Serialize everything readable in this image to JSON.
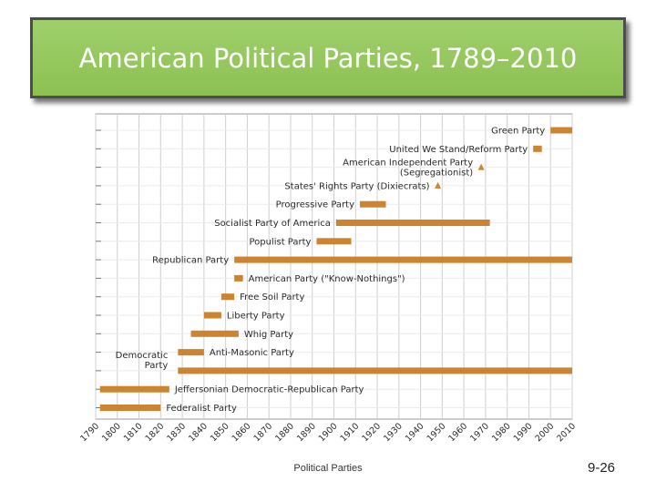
{
  "slide": {
    "title": "American Political Parties, 1789–2010",
    "footer": "Political Parties",
    "page_number": "9-26"
  },
  "colors": {
    "bar": "#cc8431",
    "title_bg": "#8cc152",
    "grid": "#cfcfcf"
  },
  "chart_data": {
    "type": "bar",
    "orientation": "horizontal-timeline",
    "title": "American Political Parties, 1789–2010",
    "xlim": [
      1790,
      2010
    ],
    "x_ticks": [
      1790,
      1800,
      1810,
      1820,
      1830,
      1840,
      1850,
      1860,
      1870,
      1880,
      1890,
      1900,
      1910,
      1920,
      1930,
      1940,
      1950,
      1960,
      1970,
      1980,
      1990,
      2000,
      2010
    ],
    "grid": true,
    "parties": [
      {
        "name": "Green Party",
        "start": 2000,
        "end": 2010,
        "label_side": "left"
      },
      {
        "name": "United We Stand/Reform Party",
        "start": 1992,
        "end": 1996,
        "label_side": "left"
      },
      {
        "name": "American Independent Party\n(Segregationist)",
        "start": 1968,
        "end": 1968,
        "marker": "triangle",
        "label_side": "left"
      },
      {
        "name": "States' Rights Party (Dixiecrats)",
        "start": 1948,
        "end": 1948,
        "marker": "triangle",
        "label_side": "left"
      },
      {
        "name": "Progressive Party",
        "start": 1912,
        "end": 1924,
        "label_side": "left"
      },
      {
        "name": "Socialist Party of America",
        "start": 1901,
        "end": 1972,
        "label_side": "left"
      },
      {
        "name": "Populist Party",
        "start": 1892,
        "end": 1908,
        "label_side": "left"
      },
      {
        "name": "Republican Party",
        "start": 1854,
        "end": 2010,
        "label_side": "left"
      },
      {
        "name": "American Party (\"Know-Nothings\")",
        "start": 1854,
        "end": 1858,
        "label_side": "right"
      },
      {
        "name": "Free Soil Party",
        "start": 1848,
        "end": 1854,
        "label_side": "right"
      },
      {
        "name": "Liberty Party",
        "start": 1840,
        "end": 1848,
        "label_side": "right"
      },
      {
        "name": "Whig Party",
        "start": 1834,
        "end": 1856,
        "label_side": "right"
      },
      {
        "name": "Anti-Masonic Party",
        "start": 1828,
        "end": 1840,
        "label_side": "right"
      },
      {
        "name": "Democratic\nParty",
        "start": 1828,
        "end": 2010,
        "label_side": "above"
      },
      {
        "name": "Jeffersonian Democratic-Republican Party",
        "start": 1792,
        "end": 1824,
        "label_side": "right"
      },
      {
        "name": "Federalist Party",
        "start": 1792,
        "end": 1820,
        "label_side": "right"
      }
    ]
  }
}
